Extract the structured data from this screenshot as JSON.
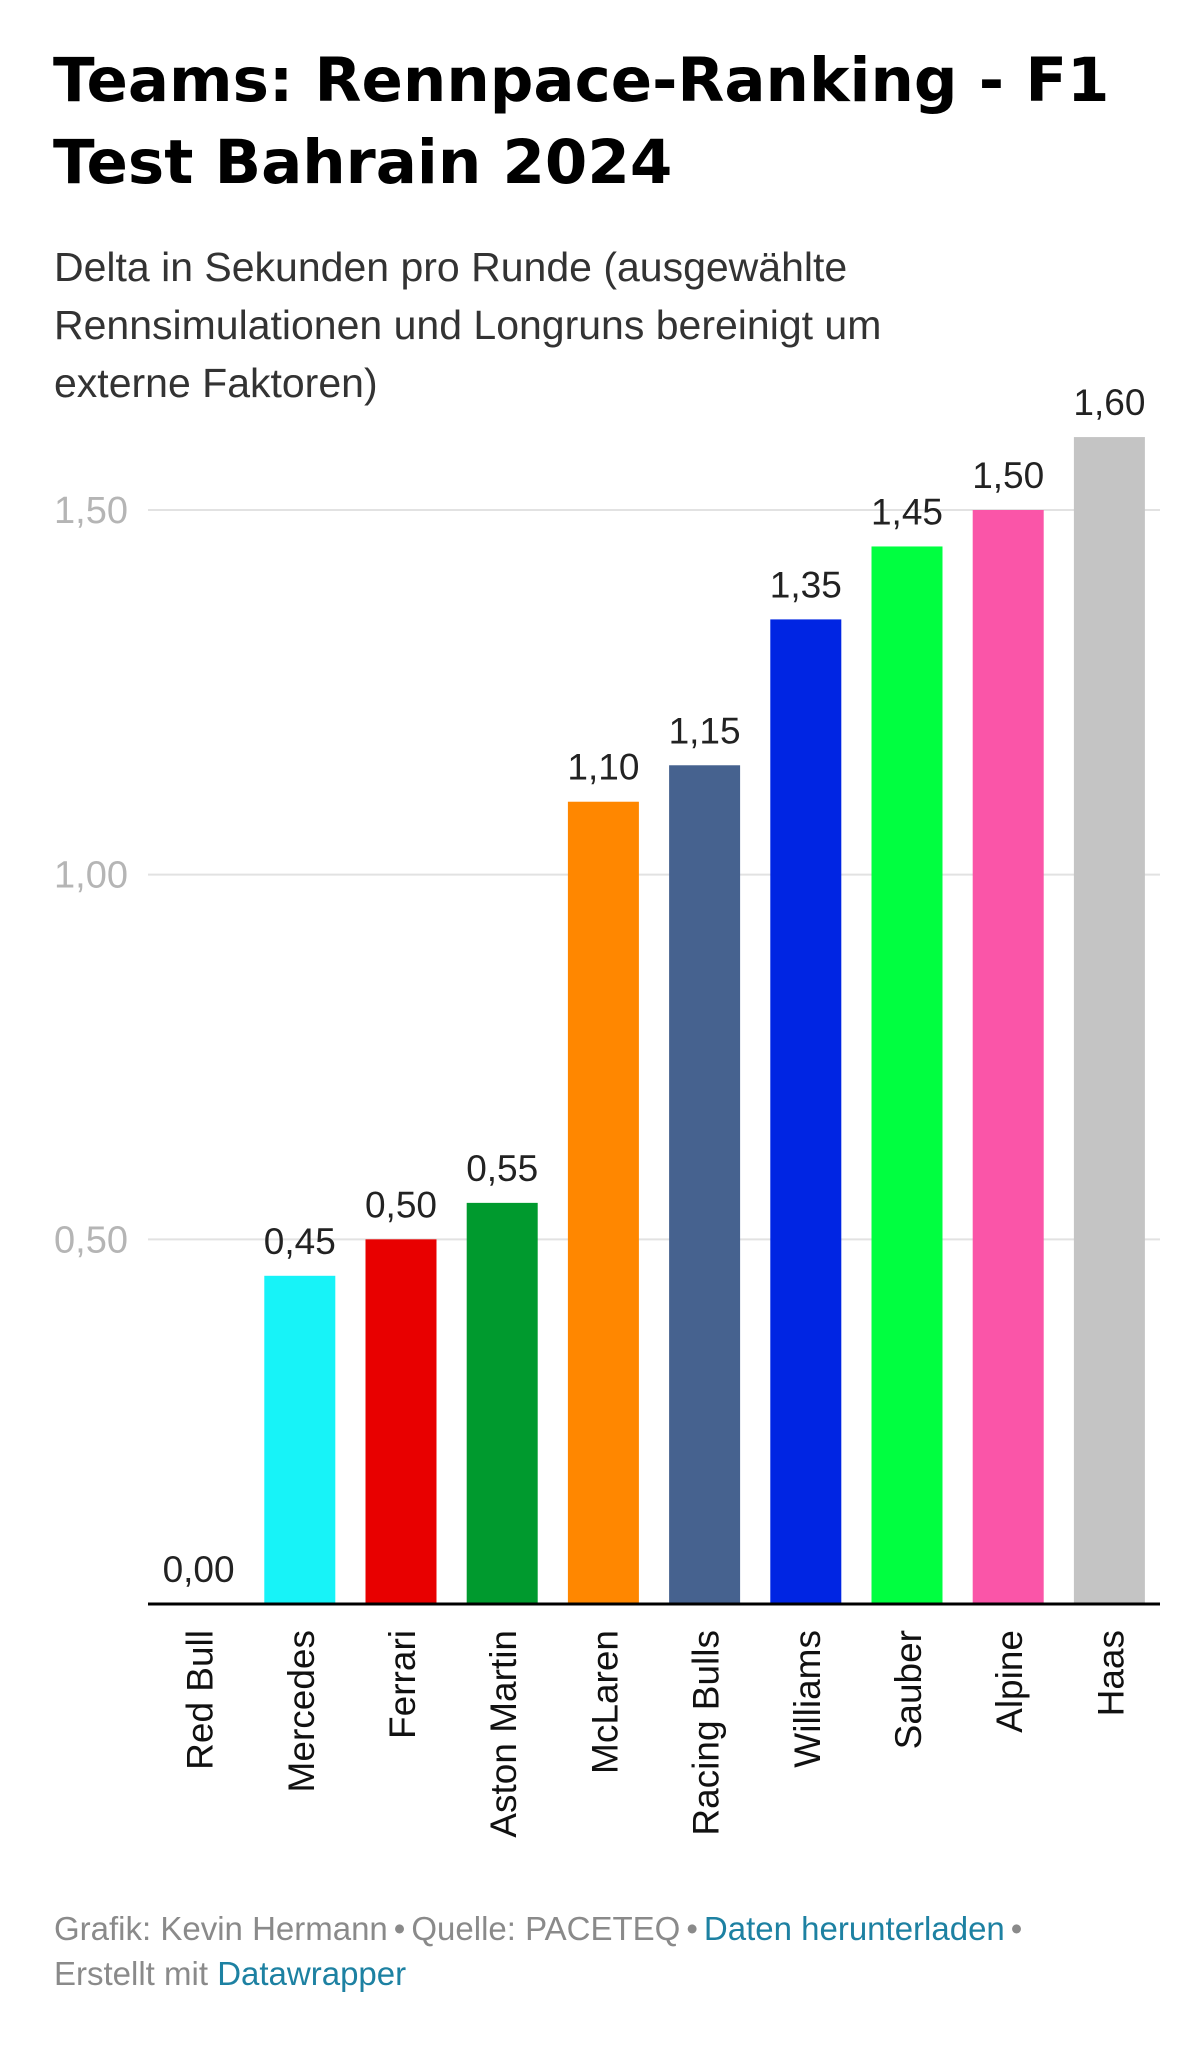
{
  "header": {
    "title_line1": "Teams: Rennpace-Ranking - F1",
    "title_line2": "Test Bahrain 2024",
    "subtitle_line1": "Delta in Sekunden pro Runde (ausgewählte",
    "subtitle_line2": "Rennsimulationen und Longruns bereinigt um",
    "subtitle_line3": "externe Faktoren)"
  },
  "chart_data": {
    "type": "bar",
    "title": "Teams: Rennpace-Ranking - F1 Test Bahrain 2024",
    "subtitle": "Delta in Sekunden pro Runde (ausgewählte Rennsimulationen und Longruns bereinigt um externe Faktoren)",
    "categories": [
      "Red Bull",
      "Mercedes",
      "Ferrari",
      "Aston Martin",
      "McLaren",
      "Racing Bulls",
      "Williams",
      "Sauber",
      "Alpine",
      "Haas"
    ],
    "values": [
      0.0,
      0.45,
      0.5,
      0.55,
      1.1,
      1.15,
      1.35,
      1.45,
      1.5,
      1.6
    ],
    "value_labels": [
      "0,00",
      "0,45",
      "0,50",
      "0,55",
      "1,10",
      "1,15",
      "1,35",
      "1,45",
      "1,50",
      "1,60"
    ],
    "colors": [
      "#1e41ff",
      "#17f3f8",
      "#e80000",
      "#009a2e",
      "#ff8700",
      "#46628f",
      "#0025e3",
      "#00ff40",
      "#fa55a8",
      "#c4c4c4"
    ],
    "y_ticks": [
      0.5,
      1.0,
      1.5
    ],
    "y_tick_labels": [
      "0,50",
      "1,00",
      "1,50"
    ],
    "ylim": [
      0,
      1.6
    ],
    "grid": true,
    "xlabel": "",
    "ylabel": ""
  },
  "footer": {
    "credit": "Grafik: Kevin Hermann",
    "source": "Quelle: PACETEQ",
    "download_link": "Daten herunterladen",
    "made_with": "Erstellt mit",
    "datawrapper_link": "Datawrapper",
    "separator": "•"
  }
}
